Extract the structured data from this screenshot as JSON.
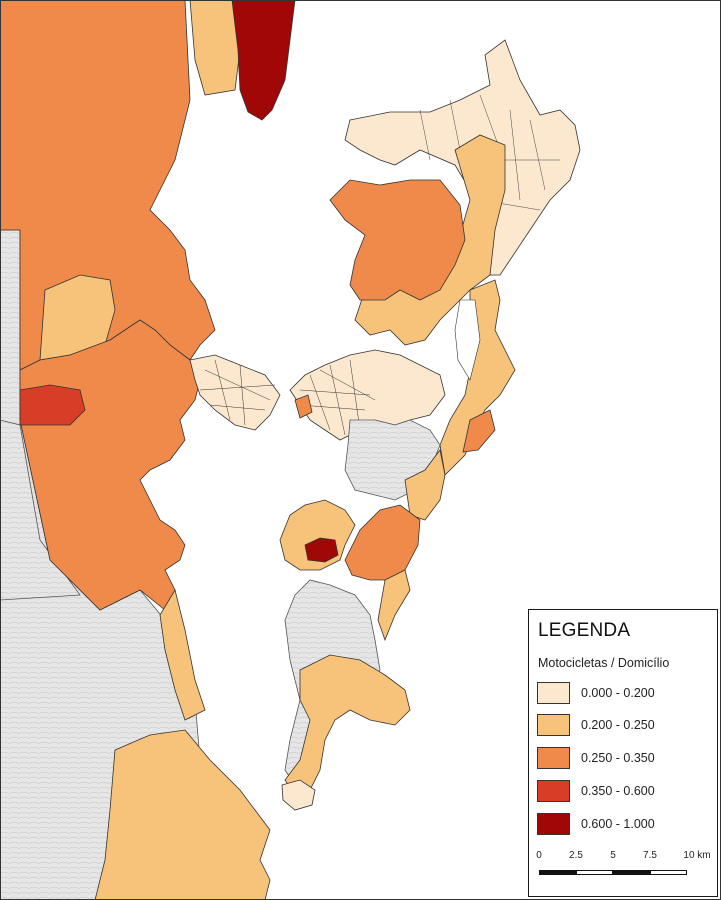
{
  "colors": {
    "water": "#ffffff",
    "context_land": "#e3e3e3",
    "class_1": "#fce8cf",
    "class_2": "#f7c27a",
    "class_3": "#f08a4a",
    "class_4": "#d83d28",
    "class_5": "#a00808"
  },
  "legend": {
    "title": "LEGENDA",
    "subtitle": "Motocicletas / Domicílio",
    "items": [
      {
        "label": "0.000 - 0.200",
        "color": "#fce8cf"
      },
      {
        "label": "0.200 - 0.250",
        "color": "#f7c27a"
      },
      {
        "label": "0.250 - 0.350",
        "color": "#f08a4a"
      },
      {
        "label": "0.350 - 0.600",
        "color": "#d83d28"
      },
      {
        "label": "0.600 - 1.000",
        "color": "#a00808"
      }
    ]
  },
  "scale_bar": {
    "ticks": [
      "0",
      "2.5",
      "5",
      "7.5",
      "10 km"
    ]
  }
}
